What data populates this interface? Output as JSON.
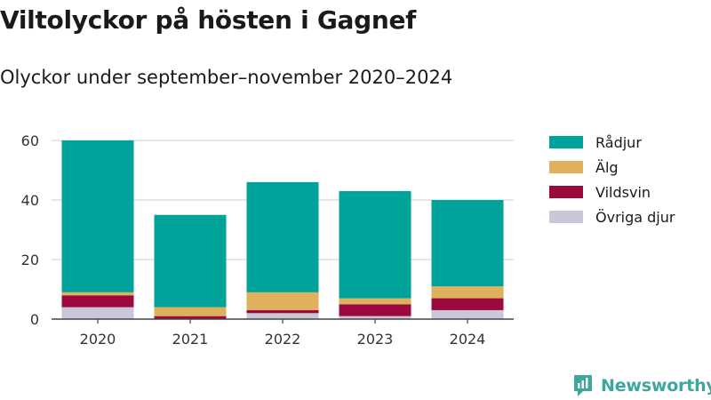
{
  "header": {
    "title": "Viltolyckor på hösten i Gagnef",
    "subtitle": "Olyckor under september–november 2020–2024"
  },
  "brand": {
    "name": "Newsworthy",
    "icon": "newsworthy-logo-icon",
    "color": "#3fa69c"
  },
  "chart_data": {
    "type": "bar",
    "stacked": true,
    "title": "Viltolyckor på hösten i Gagnef",
    "subtitle": "Olyckor under september–november 2020–2024",
    "xlabel": "",
    "ylabel": "",
    "categories": [
      "2020",
      "2021",
      "2022",
      "2023",
      "2024"
    ],
    "ylim": [
      0,
      60
    ],
    "yticks": [
      0,
      20,
      40,
      60
    ],
    "grid": true,
    "legend_position": "right",
    "series": [
      {
        "name": "Övriga djur",
        "color": "#c9c8d8",
        "values": [
          4,
          0,
          2,
          1,
          3
        ]
      },
      {
        "name": "Vildsvin",
        "color": "#9c0a3d",
        "values": [
          4,
          1,
          1,
          4,
          4
        ]
      },
      {
        "name": "Älg",
        "color": "#e0b05c",
        "values": [
          1,
          3,
          6,
          2,
          4
        ]
      },
      {
        "name": "Rådjur",
        "color": "#00a39a",
        "values": [
          51,
          31,
          37,
          36,
          29
        ]
      }
    ],
    "legend": [
      "Rådjur",
      "Älg",
      "Vildsvin",
      "Övriga djur"
    ]
  }
}
